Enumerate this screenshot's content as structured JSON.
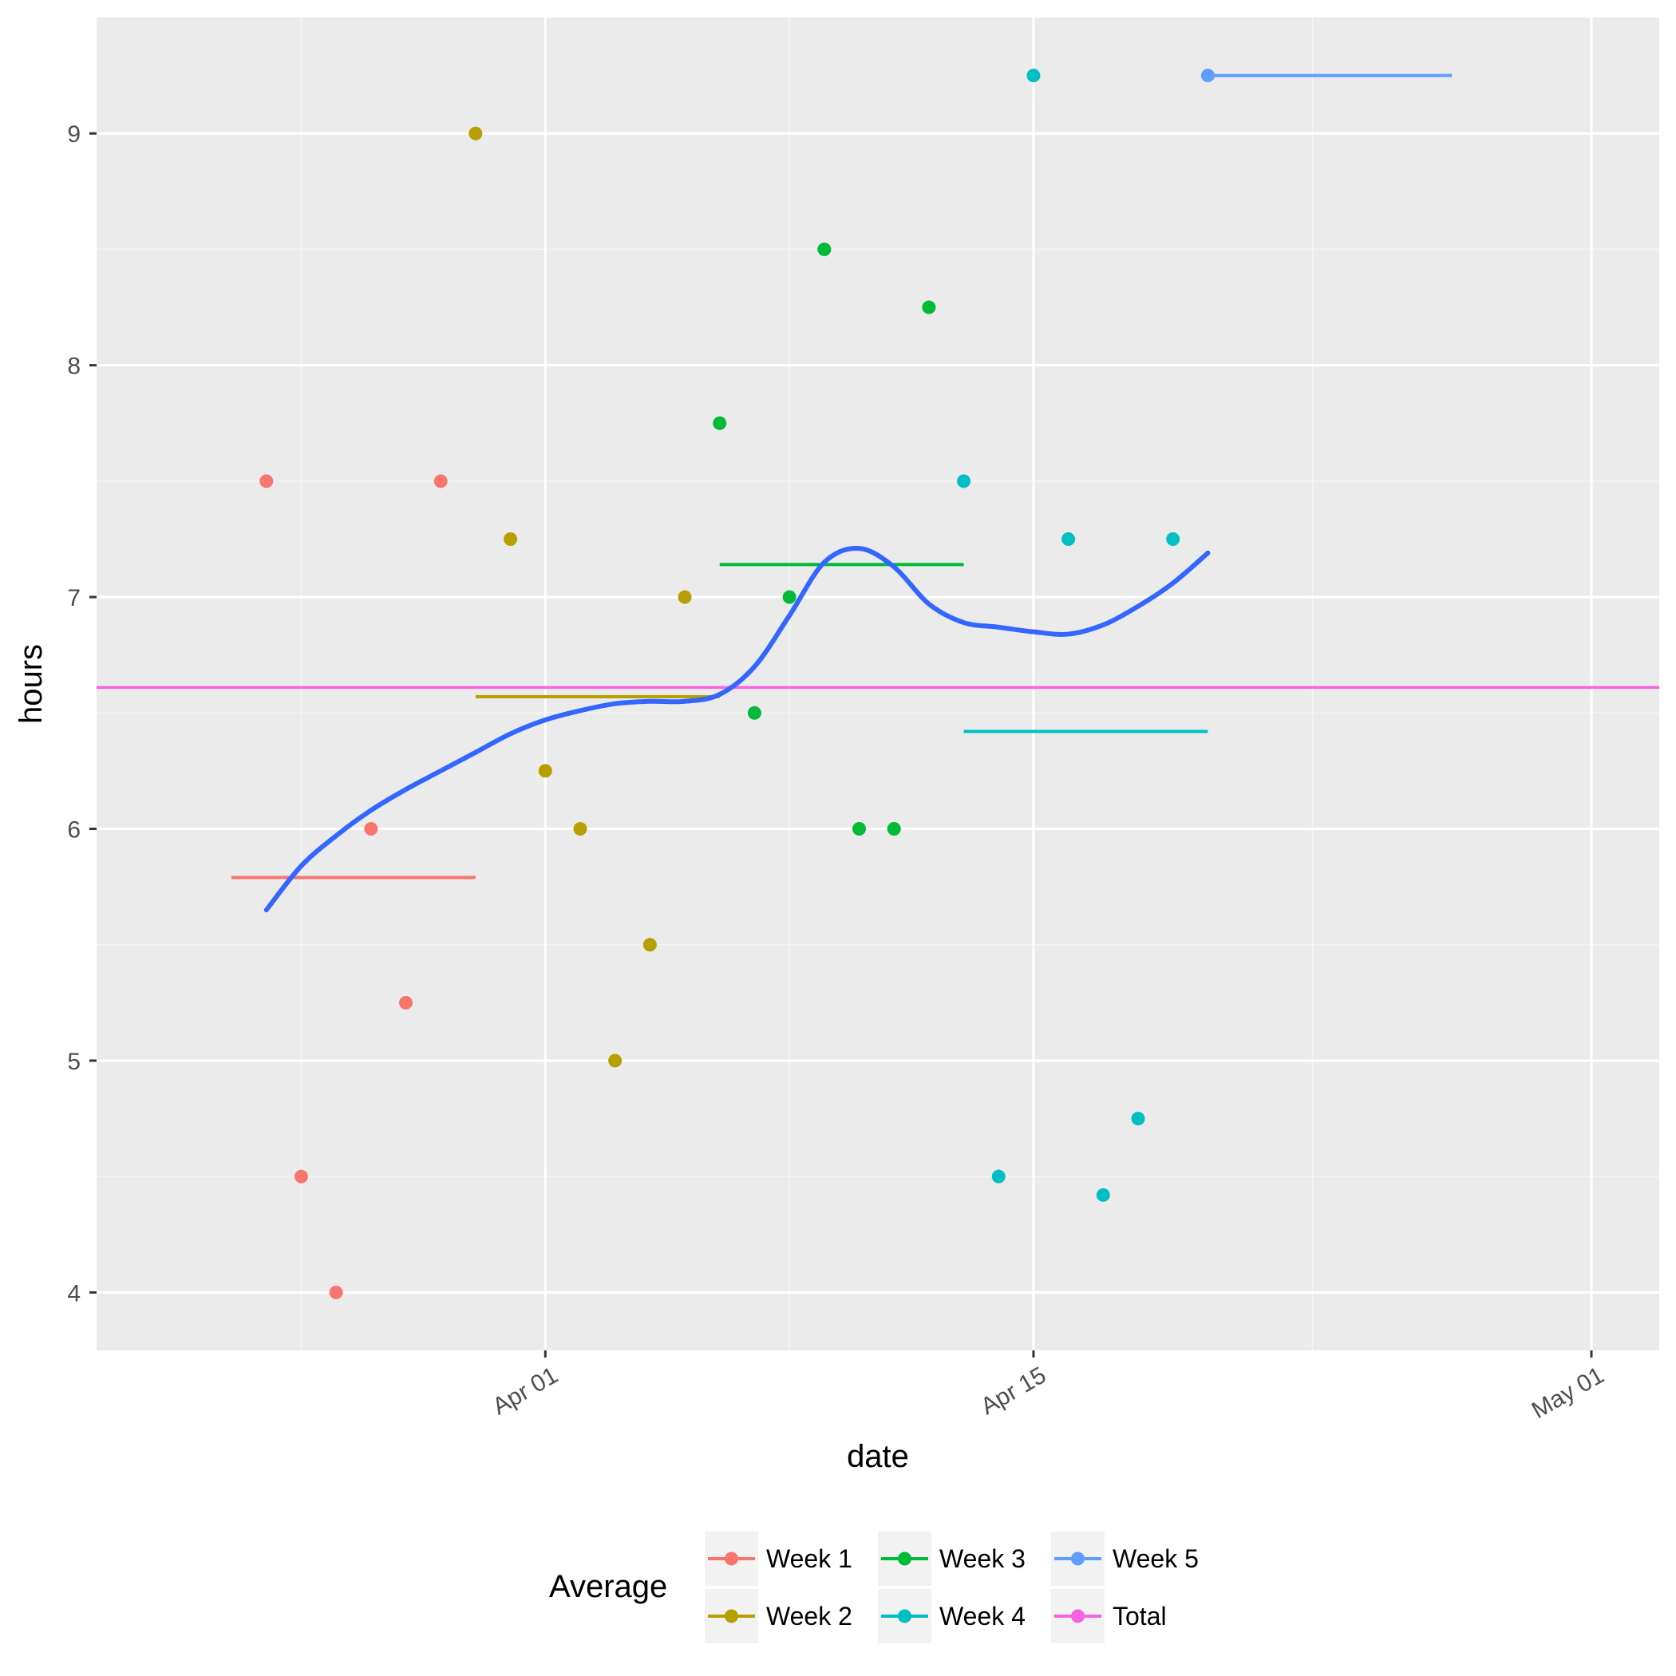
{
  "chart_data": {
    "type": "scatter",
    "xlabel": "date",
    "ylabel": "hours",
    "xlim": [
      "2018-03-20",
      "2018-05-01"
    ],
    "ylim": [
      3.75,
      9.5
    ],
    "x_ticks": [
      {
        "date": "2018-04-01",
        "label": "Apr 01"
      },
      {
        "date": "2018-04-15",
        "label": "Apr 15"
      },
      {
        "date": "2018-05-01",
        "label": "May 01"
      }
    ],
    "y_ticks": [
      4,
      5,
      6,
      7,
      8,
      9
    ],
    "grid": true,
    "legend": {
      "title": "Average",
      "placement": "bottom",
      "entries": [
        "Week 1",
        "Week 2",
        "Week 3",
        "Week 4",
        "Week 5",
        "Total"
      ]
    },
    "colors": {
      "Week 1": "#F8766D",
      "Week 2": "#B79F00",
      "Week 3": "#00BA38",
      "Week 4": "#00BFC4",
      "Week 5": "#619CFF",
      "Total": "#F564E3",
      "smooth": "#3366FF"
    },
    "series": [
      {
        "name": "Week 1",
        "points": [
          [
            "2018-03-24",
            7.5
          ],
          [
            "2018-03-25",
            4.5
          ],
          [
            "2018-03-26",
            4.0
          ],
          [
            "2018-03-27",
            6.0
          ],
          [
            "2018-03-28",
            5.25
          ],
          [
            "2018-03-29",
            7.5
          ]
        ],
        "average": 5.79,
        "average_range": [
          "2018-03-23",
          "2018-03-30"
        ]
      },
      {
        "name": "Week 2",
        "points": [
          [
            "2018-03-30",
            9.0
          ],
          [
            "2018-03-31",
            7.25
          ],
          [
            "2018-04-01",
            6.25
          ],
          [
            "2018-04-02",
            6.0
          ],
          [
            "2018-04-03",
            5.0
          ],
          [
            "2018-04-04",
            5.5
          ],
          [
            "2018-04-05",
            7.0
          ]
        ],
        "average": 6.57,
        "average_range": [
          "2018-03-30",
          "2018-04-06"
        ]
      },
      {
        "name": "Week 3",
        "points": [
          [
            "2018-04-06",
            7.75
          ],
          [
            "2018-04-07",
            6.5
          ],
          [
            "2018-04-08",
            7.0
          ],
          [
            "2018-04-09",
            8.5
          ],
          [
            "2018-04-10",
            6.0
          ],
          [
            "2018-04-11",
            6.0
          ],
          [
            "2018-04-12",
            8.25
          ]
        ],
        "average": 7.14,
        "average_range": [
          "2018-04-06",
          "2018-04-13"
        ]
      },
      {
        "name": "Week 4",
        "points": [
          [
            "2018-04-13",
            7.5
          ],
          [
            "2018-04-14",
            4.5
          ],
          [
            "2018-04-15",
            9.25
          ],
          [
            "2018-04-16",
            7.25
          ],
          [
            "2018-04-17",
            4.42
          ],
          [
            "2018-04-18",
            4.75
          ],
          [
            "2018-04-19",
            7.25
          ]
        ],
        "average": 6.42,
        "average_range": [
          "2018-04-13",
          "2018-04-20"
        ]
      },
      {
        "name": "Week 5",
        "points": [
          [
            "2018-04-20",
            9.25
          ]
        ],
        "average": 9.25,
        "average_range": [
          "2018-04-20",
          "2018-04-27"
        ]
      }
    ],
    "total_average": 6.61,
    "smooth_curve": [
      [
        "2018-03-24",
        5.65
      ],
      [
        "2018-03-25",
        5.84
      ],
      [
        "2018-03-26",
        5.97
      ],
      [
        "2018-03-27",
        6.08
      ],
      [
        "2018-03-28",
        6.17
      ],
      [
        "2018-03-29",
        6.25
      ],
      [
        "2018-03-30",
        6.33
      ],
      [
        "2018-03-31",
        6.41
      ],
      [
        "2018-04-01",
        6.47
      ],
      [
        "2018-04-02",
        6.51
      ],
      [
        "2018-04-03",
        6.54
      ],
      [
        "2018-04-04",
        6.55
      ],
      [
        "2018-04-05",
        6.55
      ],
      [
        "2018-04-06",
        6.58
      ],
      [
        "2018-04-07",
        6.7
      ],
      [
        "2018-04-08",
        6.92
      ],
      [
        "2018-04-09",
        7.15
      ],
      [
        "2018-04-10",
        7.21
      ],
      [
        "2018-04-11",
        7.13
      ],
      [
        "2018-04-12",
        6.97
      ],
      [
        "2018-04-13",
        6.89
      ],
      [
        "2018-04-14",
        6.87
      ],
      [
        "2018-04-15",
        6.85
      ],
      [
        "2018-04-16",
        6.84
      ],
      [
        "2018-04-17",
        6.88
      ],
      [
        "2018-04-18",
        6.96
      ],
      [
        "2018-04-19",
        7.06
      ],
      [
        "2018-04-20",
        7.19
      ]
    ]
  }
}
